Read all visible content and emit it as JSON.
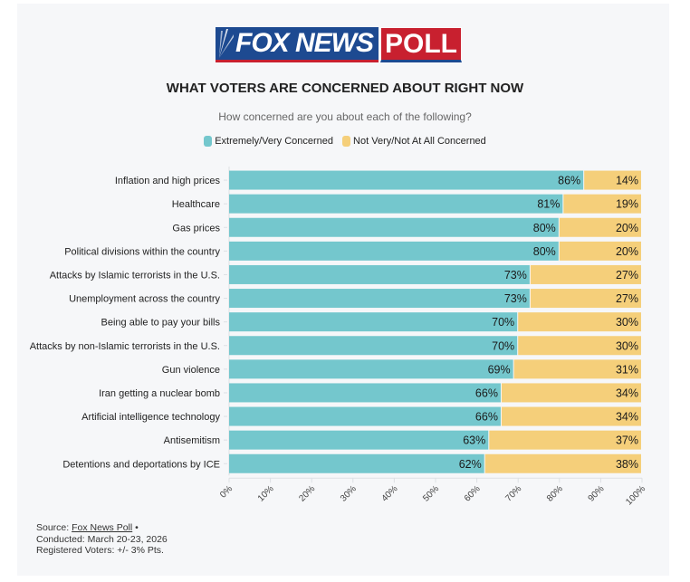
{
  "logo": {
    "part1": "FOX NEWS",
    "part2": "POLL"
  },
  "chart_data": {
    "type": "bar",
    "stacked": true,
    "orientation": "horizontal",
    "title": "WHAT VOTERS ARE CONCERNED ABOUT RIGHT NOW",
    "subtitle": "How concerned are you about each of the following?",
    "categories": [
      "Inflation and high prices",
      "Healthcare",
      "Gas prices",
      "Political divisions within the country",
      "Attacks by Islamic terrorists in the U.S.",
      "Unemployment across the country",
      "Being able to pay your bills",
      "Attacks by non-Islamic terrorists in the U.S.",
      "Gun violence",
      "Iran getting a nuclear bomb",
      "Artificial intelligence technology",
      "Antisemitism",
      "Detentions and deportations by ICE"
    ],
    "series": [
      {
        "name": "Extremely/Very Concerned",
        "color": "#74c7cd",
        "values": [
          86,
          81,
          80,
          80,
          73,
          73,
          70,
          70,
          69,
          66,
          66,
          63,
          62
        ]
      },
      {
        "name": "Not Very/Not At All Concerned",
        "color": "#f5cf7a",
        "values": [
          14,
          19,
          20,
          20,
          27,
          27,
          30,
          30,
          31,
          34,
          34,
          37,
          38
        ]
      }
    ],
    "xlabel": "",
    "ylabel": "",
    "xlim": [
      0,
      100
    ],
    "xticks": [
      "0%",
      "10%",
      "20%",
      "30%",
      "40%",
      "50%",
      "60%",
      "70%",
      "80%",
      "90%",
      "100%"
    ],
    "value_suffix": "%",
    "grid": false,
    "legend_position": "top-center"
  },
  "source": {
    "label": "Source: ",
    "link_text": "Fox News Poll",
    "bullet": " •",
    "conducted": "Conducted: March 20-23, 2026",
    "margin": "Registered Voters: +/- 3% Pts."
  }
}
